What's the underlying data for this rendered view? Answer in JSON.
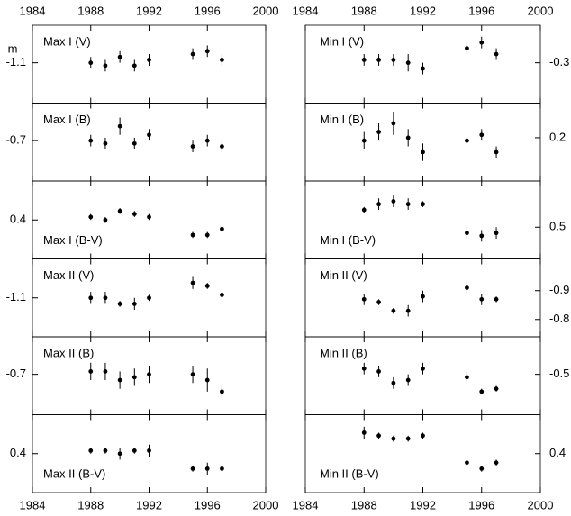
{
  "chart_data": [
    {
      "type": "scatter",
      "title": "Max I (V)",
      "y_label": "m",
      "x": [
        1988,
        1989,
        1990,
        1991,
        1992,
        1995,
        1996,
        1997
      ],
      "values": [
        -1.1,
        -1.09,
        -1.12,
        -1.09,
        -1.11,
        -1.13,
        -1.14,
        -1.11
      ],
      "errors": [
        0.02,
        0.02,
        0.02,
        0.02,
        0.02,
        0.02,
        0.02,
        0.02
      ],
      "xlim": [
        1984,
        2000
      ],
      "xticks": [
        1984,
        1988,
        1992,
        1996,
        2000
      ],
      "ylim": [
        -0.96,
        -1.23
      ],
      "yticks": [
        -1.1
      ]
    },
    {
      "type": "scatter",
      "title": "Max I (B)",
      "x": [
        1988,
        1989,
        1990,
        1991,
        1992,
        1995,
        1996,
        1997
      ],
      "values": [
        -0.7,
        -0.69,
        -0.75,
        -0.69,
        -0.72,
        -0.68,
        -0.7,
        -0.68
      ],
      "errors": [
        0.02,
        0.02,
        0.03,
        0.02,
        0.02,
        0.02,
        0.02,
        0.02
      ],
      "xlim": [
        1984,
        2000
      ],
      "xticks": [
        1984,
        1988,
        1992,
        1996,
        2000
      ],
      "ylim": [
        -0.56,
        -0.83
      ],
      "yticks": [
        -0.7
      ]
    },
    {
      "type": "scatter",
      "title": "Max I (B-V)",
      "x": [
        1988,
        1989,
        1990,
        1991,
        1992,
        1995,
        1996,
        1997
      ],
      "values": [
        0.39,
        0.4,
        0.37,
        0.38,
        0.39,
        0.45,
        0.45,
        0.43
      ],
      "errors": [
        0.01,
        0.01,
        0.01,
        0.01,
        0.01,
        0.01,
        0.01,
        0.01
      ],
      "xlim": [
        1984,
        2000
      ],
      "xticks": [
        1984,
        1988,
        1992,
        1996,
        2000
      ],
      "ylim": [
        0.53,
        0.27
      ],
      "yticks": [
        0.4
      ]
    },
    {
      "type": "scatter",
      "title": "Max II (V)",
      "x": [
        1988,
        1989,
        1990,
        1991,
        1992,
        1995,
        1996,
        1997
      ],
      "values": [
        -1.1,
        -1.1,
        -1.08,
        -1.08,
        -1.1,
        -1.15,
        -1.14,
        -1.11
      ],
      "errors": [
        0.02,
        0.02,
        0.01,
        0.02,
        0.01,
        0.02,
        0.01,
        0.01
      ],
      "xlim": [
        1984,
        2000
      ],
      "xticks": [
        1984,
        1988,
        1992,
        1996,
        2000
      ],
      "ylim": [
        -0.97,
        -1.23
      ],
      "yticks": [
        -1.1
      ]
    },
    {
      "type": "scatter",
      "title": "Max II (B)",
      "x": [
        1988,
        1989,
        1990,
        1991,
        1992,
        1995,
        1996,
        1997
      ],
      "values": [
        -0.71,
        -0.71,
        -0.68,
        -0.69,
        -0.7,
        -0.7,
        -0.68,
        -0.64
      ],
      "errors": [
        0.03,
        0.03,
        0.03,
        0.03,
        0.03,
        0.03,
        0.04,
        0.02
      ],
      "xlim": [
        1984,
        2000
      ],
      "xticks": [
        1984,
        1988,
        1992,
        1996,
        2000
      ],
      "ylim": [
        -0.56,
        -0.83
      ],
      "yticks": [
        -0.7
      ]
    },
    {
      "type": "scatter",
      "title": "Max II (B-V)",
      "x": [
        1988,
        1989,
        1990,
        1991,
        1992,
        1995,
        1996,
        1997
      ],
      "values": [
        0.39,
        0.39,
        0.4,
        0.39,
        0.39,
        0.45,
        0.45,
        0.45
      ],
      "errors": [
        0.01,
        0.01,
        0.02,
        0.01,
        0.02,
        0.01,
        0.02,
        0.01
      ],
      "xlim": [
        1984,
        2000
      ],
      "xticks": [
        1984,
        1988,
        1992,
        1996,
        2000
      ],
      "ylim": [
        0.53,
        0.27
      ],
      "yticks": [
        0.4
      ]
    },
    {
      "type": "scatter",
      "title": "Min I (V)",
      "x": [
        1988,
        1989,
        1990,
        1991,
        1992,
        1995,
        1996,
        1997
      ],
      "values": [
        -0.31,
        -0.31,
        -0.31,
        -0.3,
        -0.28,
        -0.35,
        -0.37,
        -0.33
      ],
      "errors": [
        0.02,
        0.02,
        0.02,
        0.03,
        0.02,
        0.02,
        0.02,
        0.02
      ],
      "xlim": [
        1984,
        2000
      ],
      "xticks": [
        1984,
        1988,
        1992,
        1996,
        2000
      ],
      "ylim": [
        -0.16,
        -0.43
      ],
      "yticks": [
        -0.3
      ]
    },
    {
      "type": "scatter",
      "title": "Min I (B)",
      "x": [
        1988,
        1989,
        1990,
        1991,
        1992,
        1995,
        1996,
        1997
      ],
      "values": [
        0.21,
        0.18,
        0.15,
        0.2,
        0.25,
        0.21,
        0.19,
        0.25
      ],
      "errors": [
        0.03,
        0.03,
        0.04,
        0.03,
        0.03,
        0.01,
        0.02,
        0.02
      ],
      "xlim": [
        1984,
        2000
      ],
      "xticks": [
        1984,
        1988,
        1992,
        1996,
        2000
      ],
      "ylim": [
        0.35,
        0.08
      ],
      "yticks": [
        0.2
      ]
    },
    {
      "type": "scatter",
      "title": "Min I (B-V)",
      "x": [
        1988,
        1989,
        1990,
        1991,
        1992,
        1995,
        1996,
        1997
      ],
      "values": [
        0.44,
        0.42,
        0.41,
        0.42,
        0.42,
        0.52,
        0.53,
        0.52
      ],
      "errors": [
        0.01,
        0.02,
        0.02,
        0.02,
        0.01,
        0.02,
        0.02,
        0.02
      ],
      "xlim": [
        1984,
        2000
      ],
      "xticks": [
        1984,
        1988,
        1992,
        1996,
        2000
      ],
      "ylim": [
        0.61,
        0.34
      ],
      "yticks": [
        0.5
      ]
    },
    {
      "type": "scatter",
      "title": "Min II (V)",
      "x": [
        1988,
        1989,
        1990,
        1991,
        1992,
        1995,
        1996,
        1997
      ],
      "values": [
        -0.87,
        -0.86,
        -0.83,
        -0.83,
        -0.88,
        -0.91,
        -0.87,
        -0.87
      ],
      "errors": [
        0.02,
        0.01,
        0.01,
        0.02,
        0.02,
        0.02,
        0.02,
        0.01
      ],
      "xlim": [
        1984,
        2000
      ],
      "xticks": [
        1984,
        1988,
        1992,
        1996,
        2000
      ],
      "ylim": [
        -0.74,
        -1.01
      ],
      "yticks": [
        -0.9,
        -0.8
      ]
    },
    {
      "type": "scatter",
      "title": "Min II (B)",
      "x": [
        1988,
        1989,
        1990,
        1991,
        1992,
        1995,
        1996,
        1997
      ],
      "values": [
        -0.52,
        -0.51,
        -0.47,
        -0.48,
        -0.52,
        -0.49,
        -0.44,
        -0.45
      ],
      "errors": [
        0.02,
        0.02,
        0.02,
        0.02,
        0.02,
        0.02,
        0.01,
        0.01
      ],
      "xlim": [
        1984,
        2000
      ],
      "xticks": [
        1984,
        1988,
        1992,
        1996,
        2000
      ],
      "ylim": [
        -0.36,
        -0.63
      ],
      "yticks": [
        -0.5
      ]
    },
    {
      "type": "scatter",
      "title": "Min II (B-V)",
      "x": [
        1988,
        1989,
        1990,
        1991,
        1992,
        1995,
        1996,
        1997
      ],
      "values": [
        0.33,
        0.34,
        0.35,
        0.35,
        0.34,
        0.43,
        0.45,
        0.43
      ],
      "errors": [
        0.02,
        0.01,
        0.01,
        0.01,
        0.01,
        0.01,
        0.01,
        0.01
      ],
      "xlim": [
        1984,
        2000
      ],
      "xticks": [
        1984,
        1988,
        1992,
        1996,
        2000
      ],
      "ylim": [
        0.53,
        0.27
      ],
      "yticks": [
        0.4
      ]
    }
  ]
}
